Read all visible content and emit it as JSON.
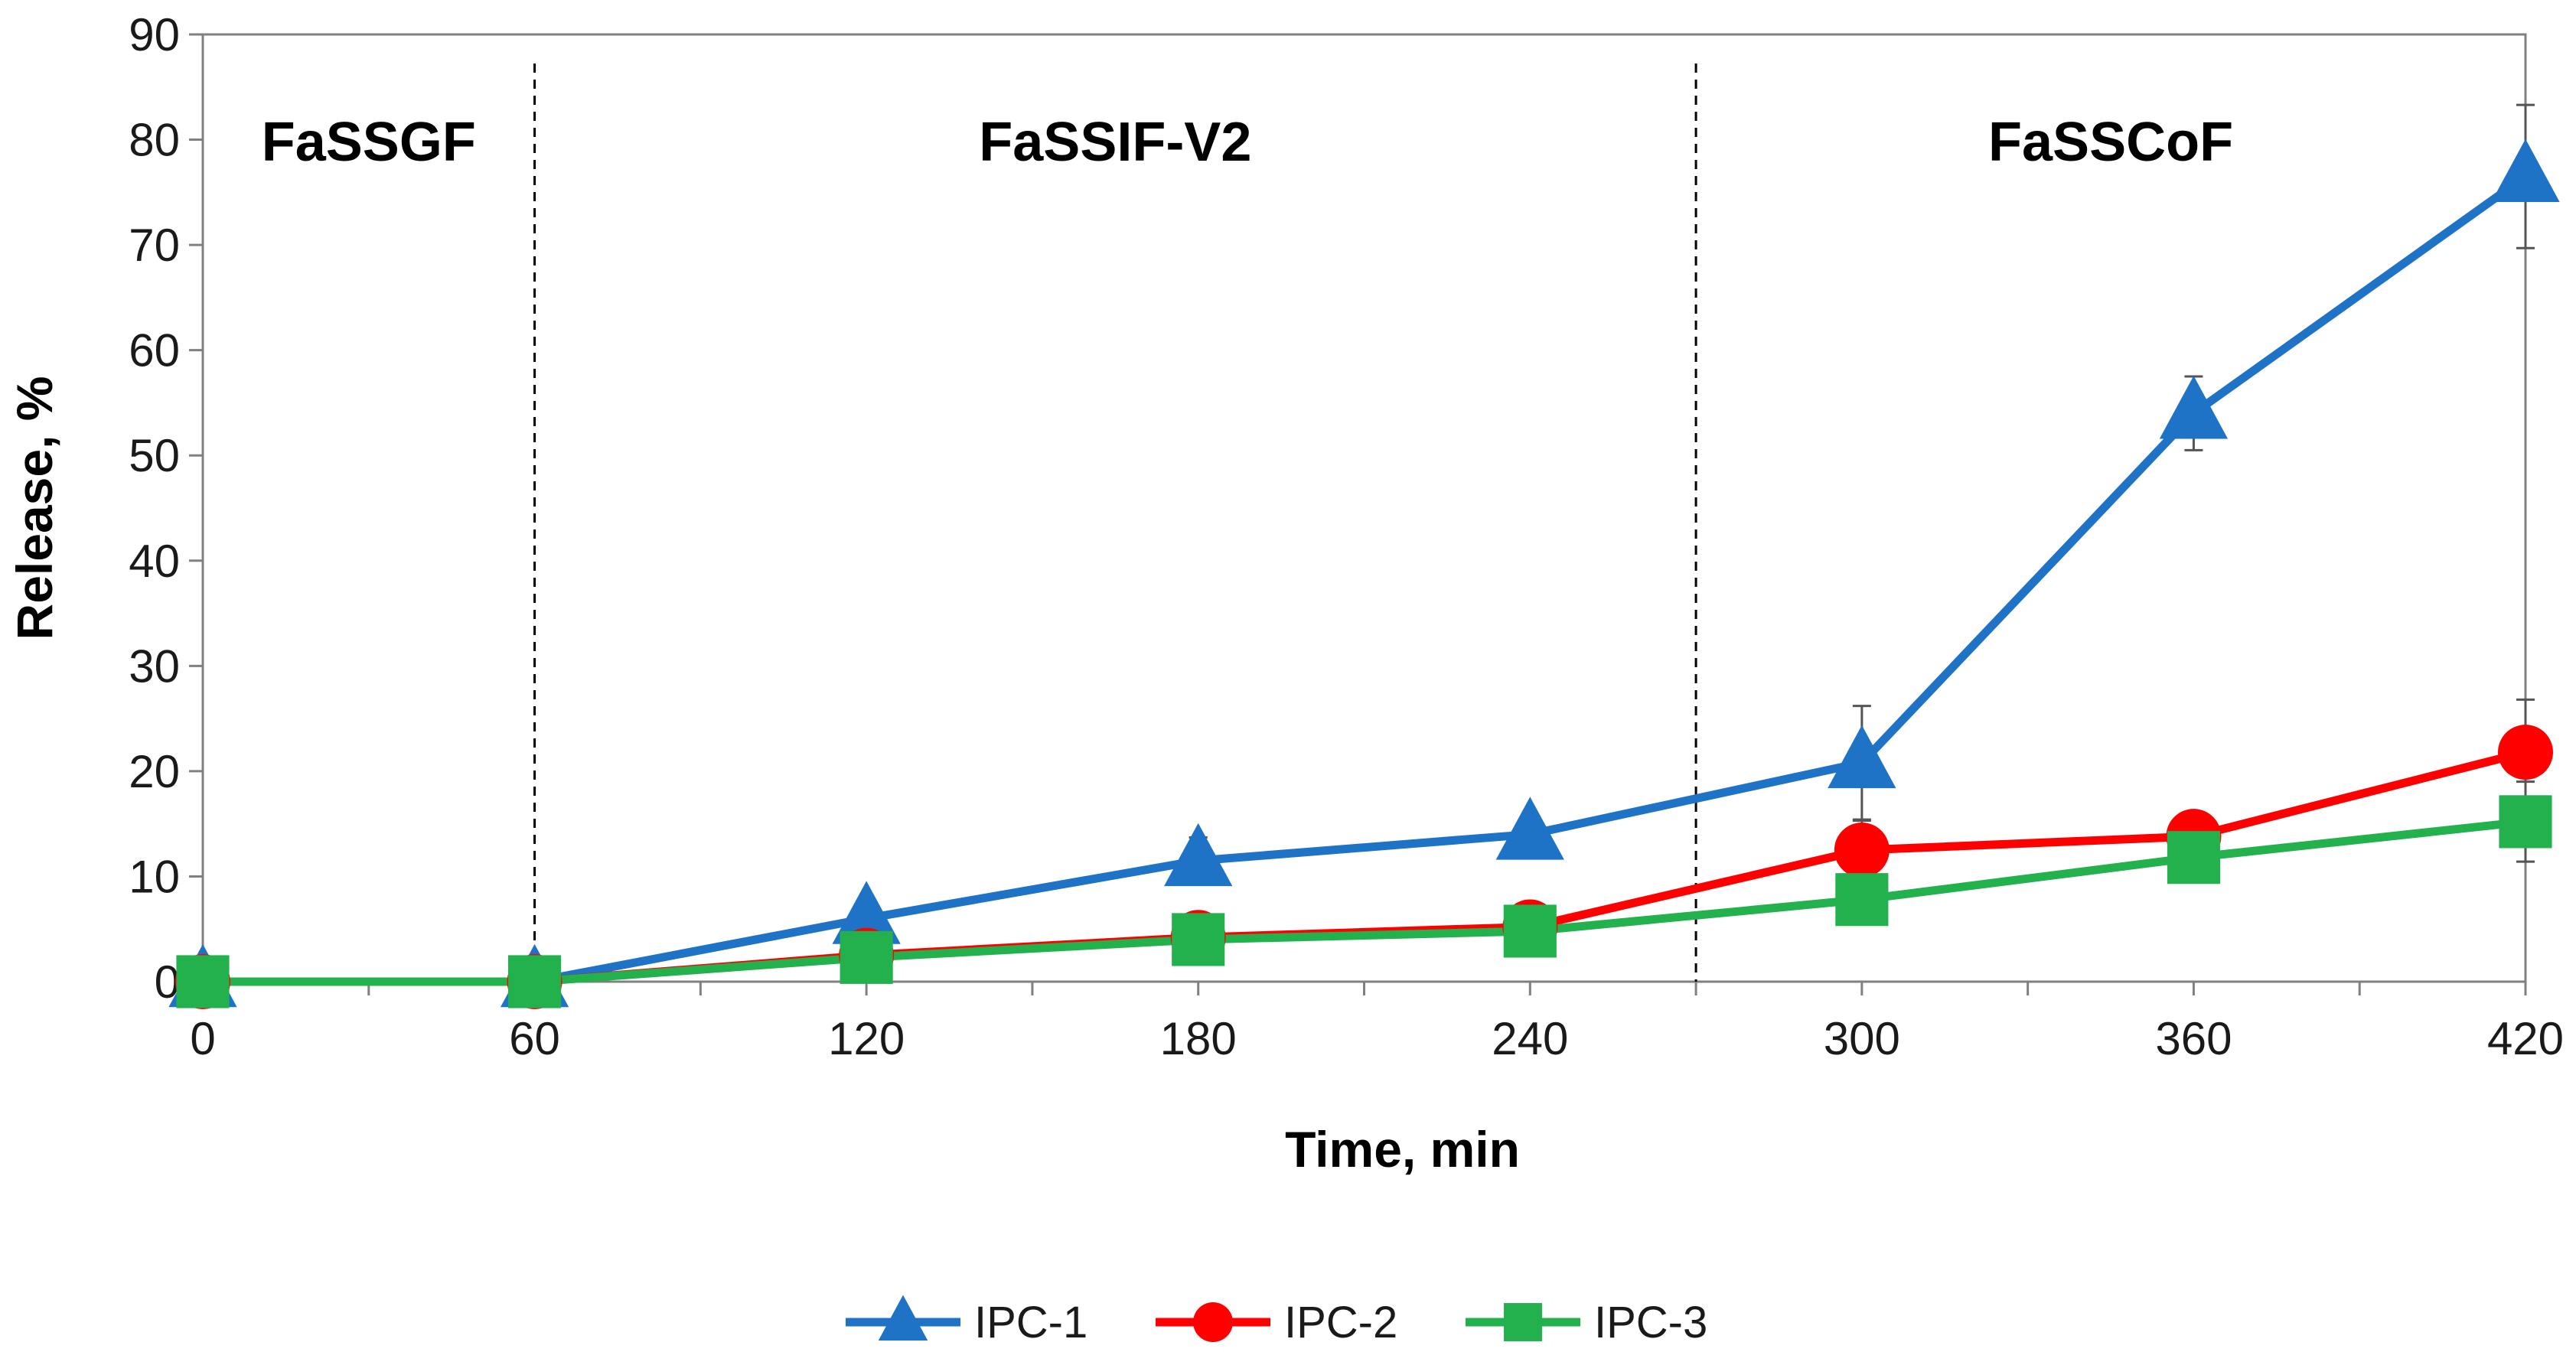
{
  "chart_data": {
    "type": "line",
    "title": "",
    "xlabel": "Time, min",
    "ylabel": "Release, %",
    "xlim": [
      0,
      420
    ],
    "ylim": [
      0,
      90
    ],
    "x_ticks": [
      0,
      60,
      120,
      180,
      240,
      300,
      360,
      420
    ],
    "y_ticks": [
      0,
      10,
      20,
      30,
      40,
      50,
      60,
      70,
      80,
      90
    ],
    "grid": false,
    "legend_position": "bottom-center",
    "phase_dividers": [
      60,
      270
    ],
    "phases": [
      {
        "label": "FaSSGF",
        "x_center": 30
      },
      {
        "label": "FaSSIF-V2",
        "x_center": 165
      },
      {
        "label": "FaSSCoF",
        "x_center": 345
      }
    ],
    "series": [
      {
        "name": "IPC-1",
        "color": "#1f73c6",
        "marker": "triangle",
        "x": [
          0,
          60,
          120,
          180,
          240,
          300,
          360,
          420
        ],
        "values": [
          0,
          0,
          6,
          11.5,
          14,
          20.8,
          54,
          76.5
        ],
        "errors": [
          0,
          0,
          1.5,
          2.2,
          1.3,
          5.4,
          3.5,
          6.8
        ]
      },
      {
        "name": "IPC-2",
        "color": "#ff0000",
        "marker": "circle",
        "x": [
          0,
          60,
          120,
          180,
          240,
          300,
          360,
          420
        ],
        "values": [
          0,
          0,
          2.5,
          4.2,
          5.2,
          12.5,
          13.8,
          21.8
        ],
        "errors": [
          0,
          0,
          0.4,
          0.5,
          0.5,
          2.8,
          1.2,
          5.0
        ]
      },
      {
        "name": "IPC-3",
        "color": "#22b14c",
        "marker": "square",
        "x": [
          0,
          60,
          120,
          180,
          240,
          300,
          360,
          420
        ],
        "values": [
          0,
          0,
          2.3,
          4.0,
          4.8,
          7.8,
          11.8,
          15.2
        ],
        "errors": [
          0,
          0,
          0.4,
          0.5,
          0.5,
          1.0,
          1.0,
          3.8
        ]
      }
    ]
  }
}
